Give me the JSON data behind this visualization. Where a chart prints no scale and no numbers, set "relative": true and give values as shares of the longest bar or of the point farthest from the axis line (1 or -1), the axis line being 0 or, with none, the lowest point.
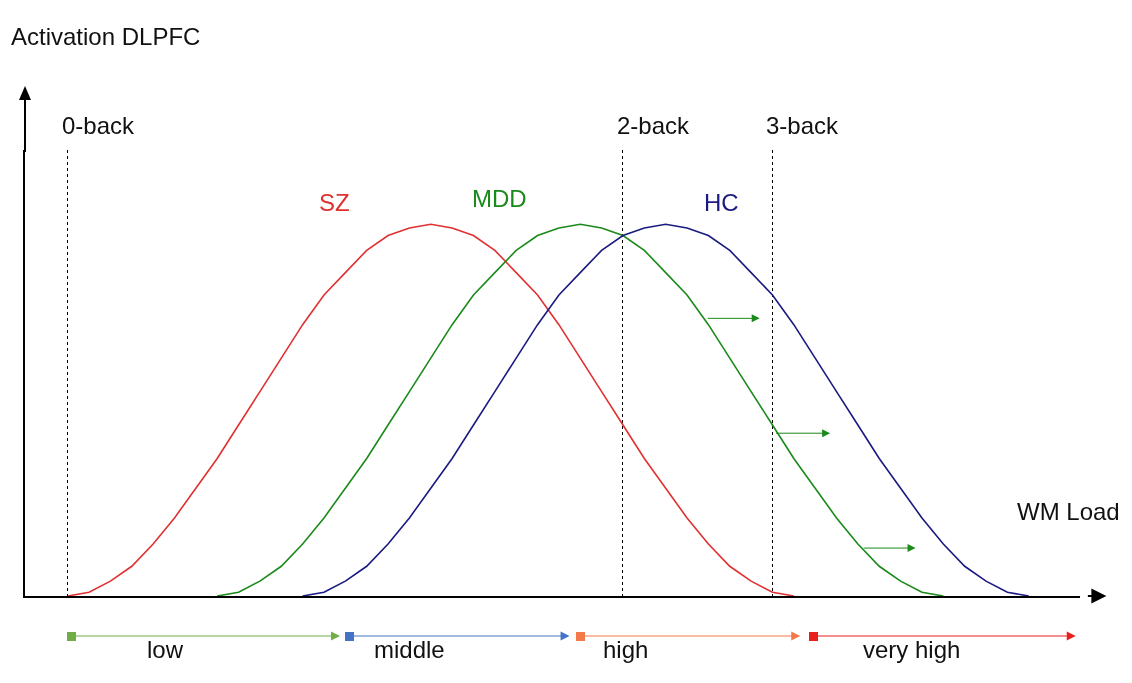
{
  "chart_data": {
    "type": "line",
    "xlabel": "WM Load",
    "relative": true,
    "legend": false,
    "grid": "x",
    "marker": "none",
    "line_style": "solid",
    "categories": [
      null,
      null,
      null,
      null,
      null,
      null,
      null,
      null,
      null,
      null,
      null,
      null,
      null,
      null,
      null,
      null,
      null,
      null,
      null,
      null,
      null,
      null,
      null,
      null,
      null,
      null,
      null,
      null,
      null,
      null,
      null,
      null,
      null,
      null,
      null,
      null,
      null,
      null,
      null,
      null,
      null,
      null,
      null,
      null,
      null,
      null,
      null,
      null,
      null,
      null
    ],
    "series": [
      {
        "name": "SZ",
        "color": "#e03030",
        "values": [
          null,
          null,
          0,
          0.01,
          0.04,
          0.08,
          0.14,
          0.21,
          0.29,
          0.37,
          0.46,
          0.55,
          0.64,
          0.73,
          0.81,
          0.87,
          0.93,
          0.97,
          0.99,
          1,
          0.99,
          0.97,
          0.93,
          0.87,
          0.81,
          0.73,
          0.64,
          0.55,
          0.46,
          0.37,
          0.29,
          0.21,
          0.14,
          0.08,
          0.04,
          0.01,
          0,
          null,
          null,
          null,
          null,
          null,
          null,
          null,
          null,
          null,
          null,
          null,
          null,
          null
        ]
      },
      {
        "name": "MDD",
        "color": "#1a8a1a",
        "values": [
          null,
          null,
          null,
          null,
          null,
          null,
          null,
          null,
          null,
          0,
          0.01,
          0.04,
          0.08,
          0.14,
          0.21,
          0.29,
          0.37,
          0.46,
          0.55,
          0.64,
          0.73,
          0.81,
          0.87,
          0.93,
          0.97,
          0.99,
          1,
          0.99,
          0.97,
          0.93,
          0.87,
          0.81,
          0.73,
          0.64,
          0.55,
          0.46,
          0.37,
          0.29,
          0.21,
          0.14,
          0.08,
          0.04,
          0.01,
          0,
          null,
          null,
          null,
          null,
          null,
          null
        ]
      },
      {
        "name": "HC",
        "color": "#1a1a80",
        "values": [
          null,
          null,
          null,
          null,
          null,
          null,
          null,
          null,
          null,
          null,
          null,
          null,
          null,
          0,
          0.01,
          0.04,
          0.08,
          0.14,
          0.21,
          0.29,
          0.37,
          0.46,
          0.55,
          0.64,
          0.73,
          0.81,
          0.87,
          0.93,
          0.97,
          0.99,
          1,
          0.99,
          0.97,
          0.93,
          0.87,
          0.81,
          0.73,
          0.64,
          0.55,
          0.46,
          0.37,
          0.29,
          0.21,
          0.14,
          0.08,
          0.04,
          0.01,
          0,
          null,
          null
        ]
      }
    ],
    "annotations": [
      "Activation DLPFC",
      "0-back",
      "2-back",
      "3-back",
      "low",
      "middle",
      "high",
      "very high"
    ]
  }
}
